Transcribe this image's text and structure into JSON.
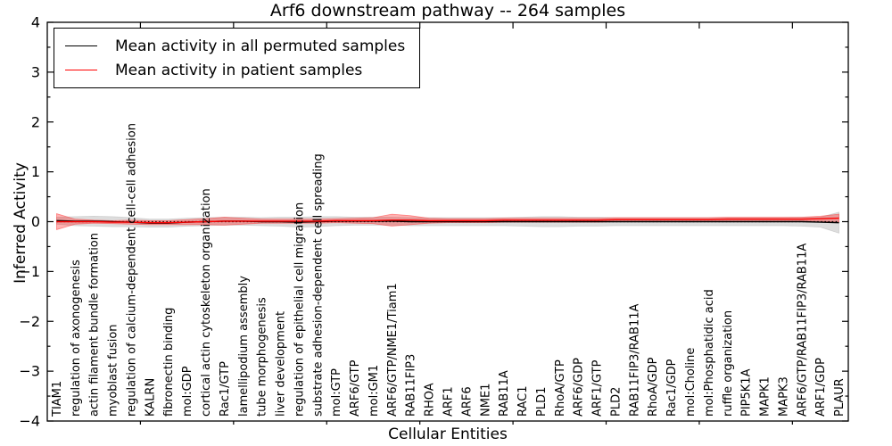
{
  "chart_data": {
    "type": "line",
    "title": "Arf6 downstream pathway -- 264 samples",
    "xlabel": "Cellular Entities",
    "ylabel": "Inferred Activity",
    "ylim": [
      -4,
      4
    ],
    "yticks": [
      -4,
      -3,
      -2,
      -1,
      0,
      1,
      2,
      3,
      4
    ],
    "grid": false,
    "legend_position": "upper left",
    "reference_line": {
      "y": 0,
      "style": "dotted",
      "color": "#000000"
    },
    "categories": [
      "TIAM1",
      "regulation of axonogenesis",
      "actin filament bundle formation",
      "myoblast fusion",
      "regulation of calcium-dependent cell-cell adhesion",
      "KALRN",
      "fibronectin binding",
      "mol:GDP",
      "cortical actin cytoskeleton organization",
      "Rac1/GTP",
      "lamellipodium assembly",
      "tube morphogenesis",
      "liver development",
      "regulation of epithelial cell migration",
      "substrate adhesion-dependent cell spreading",
      "mol:GTP",
      "ARF6/GTP",
      "mol:GM1",
      "ARF6/GTP/NME1/Tiam1",
      "RAB11FIP3",
      "RHOA",
      "ARF1",
      "ARF6",
      "NME1",
      "RAB11A",
      "RAC1",
      "PLD1",
      "RhoA/GTP",
      "ARF6/GDP",
      "ARF1/GTP",
      "PLD2",
      "RAB11FIP3/RAB11A",
      "RhoA/GDP",
      "Rac1/GDP",
      "mol:Choline",
      "mol:Phosphatidic acid",
      "ruffle organization",
      "PIP5K1A",
      "MAPK1",
      "MAPK3",
      "ARF6/GTP/RAB11FIP3/RAB11A",
      "ARF1/GDP",
      "PLAUR"
    ],
    "series": [
      {
        "name": "Mean activity in all permuted samples",
        "color": "#000000",
        "band_fill": "rgba(150,150,150,0.32)",
        "band_edge": "rgba(190,190,190,0.6)",
        "values": [
          0.02,
          0.01,
          0.01,
          0.0,
          -0.01,
          -0.03,
          -0.03,
          -0.01,
          0.0,
          0.01,
          0.01,
          0.0,
          0.0,
          -0.01,
          0.0,
          0.01,
          0.01,
          0.01,
          0.01,
          0.0,
          0.0,
          0.0,
          0.0,
          0.0,
          0.0,
          0.0,
          0.0,
          0.0,
          0.0,
          0.0,
          0.0,
          0.0,
          0.0,
          0.0,
          0.0,
          0.0,
          0.0,
          0.0,
          0.0,
          0.0,
          0.0,
          -0.01,
          -0.02
        ],
        "band_halfwidth": [
          0.07,
          0.09,
          0.1,
          0.1,
          0.09,
          0.08,
          0.08,
          0.08,
          0.08,
          0.08,
          0.08,
          0.08,
          0.09,
          0.1,
          0.1,
          0.09,
          0.08,
          0.08,
          0.08,
          0.08,
          0.08,
          0.08,
          0.08,
          0.08,
          0.08,
          0.09,
          0.1,
          0.1,
          0.09,
          0.09,
          0.08,
          0.08,
          0.08,
          0.08,
          0.08,
          0.08,
          0.08,
          0.08,
          0.08,
          0.08,
          0.09,
          0.1,
          0.21
        ]
      },
      {
        "name": "Mean activity in patient samples",
        "color": "#ff0000",
        "band_fill": "rgba(255,0,0,0.30)",
        "band_edge": "rgba(255,60,60,0.55)",
        "values": [
          0.0,
          0.0,
          0.0,
          -0.01,
          -0.01,
          -0.02,
          -0.02,
          -0.01,
          0.0,
          0.01,
          0.01,
          0.01,
          0.01,
          0.01,
          0.01,
          0.02,
          0.02,
          0.02,
          0.03,
          0.03,
          0.02,
          0.02,
          0.02,
          0.02,
          0.03,
          0.03,
          0.03,
          0.03,
          0.03,
          0.03,
          0.04,
          0.04,
          0.04,
          0.04,
          0.04,
          0.04,
          0.05,
          0.05,
          0.05,
          0.05,
          0.05,
          0.06,
          0.07
        ],
        "band_halfwidth": [
          0.16,
          0.05,
          0.03,
          0.03,
          0.04,
          0.04,
          0.04,
          0.05,
          0.06,
          0.08,
          0.06,
          0.04,
          0.04,
          0.04,
          0.04,
          0.04,
          0.05,
          0.06,
          0.12,
          0.09,
          0.05,
          0.04,
          0.04,
          0.04,
          0.04,
          0.04,
          0.04,
          0.04,
          0.04,
          0.04,
          0.04,
          0.04,
          0.04,
          0.04,
          0.04,
          0.04,
          0.04,
          0.04,
          0.04,
          0.04,
          0.04,
          0.05,
          0.08
        ]
      }
    ]
  }
}
